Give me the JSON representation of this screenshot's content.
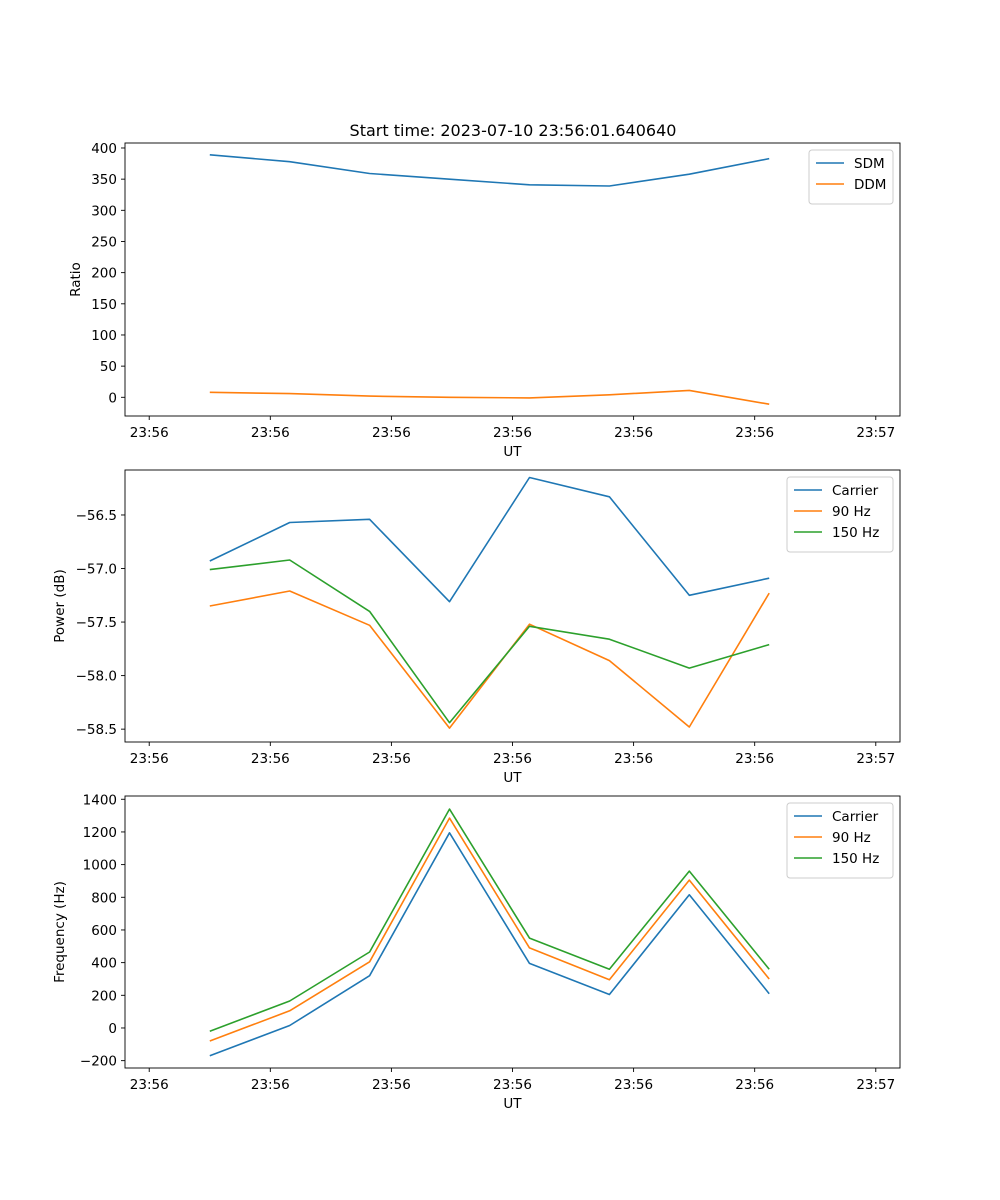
{
  "figure_title": "Start time: 2023-07-10 23:56:01.640640",
  "chart_data": [
    {
      "type": "line",
      "title": "Start time: 2023-07-10 23:56:01.640640",
      "xlabel": "UT",
      "ylabel": "Ratio",
      "x_ticks": [
        "23:56",
        "23:56",
        "23:56",
        "23:56",
        "23:56",
        "23:56",
        "23:57"
      ],
      "y_ticks": [
        "0",
        "50",
        "100",
        "150",
        "200",
        "250",
        "300",
        "350",
        "400"
      ],
      "xlim": [
        -0.7,
        5.7
      ],
      "ylim": [
        -30,
        408
      ],
      "x_tick_values": [
        -0.5,
        0.5,
        1.5,
        2.5,
        3.5,
        4.5,
        5.5
      ],
      "y_tick_values": [
        0,
        50,
        100,
        150,
        200,
        250,
        300,
        350,
        400
      ],
      "x": [
        0,
        0.66,
        1.32,
        1.98,
        2.64,
        3.3,
        3.96,
        4.62
      ],
      "series": [
        {
          "name": "SDM",
          "color": "#1f77b4",
          "values": [
            389,
            378,
            359,
            350,
            341,
            339,
            358,
            383
          ]
        },
        {
          "name": "DDM",
          "color": "#ff7f0e",
          "values": [
            8,
            6,
            2,
            0,
            -1,
            4,
            11,
            -11
          ]
        }
      ],
      "legend": "top-right"
    },
    {
      "type": "line",
      "title": "",
      "xlabel": "UT",
      "ylabel": "Power (dB)",
      "x_ticks": [
        "23:56",
        "23:56",
        "23:56",
        "23:56",
        "23:56",
        "23:56",
        "23:57"
      ],
      "y_ticks": [
        "−56.5",
        "−57.0",
        "−57.5",
        "−58.0",
        "−58.5"
      ],
      "xlim": [
        -0.7,
        5.7
      ],
      "ylim": [
        -58.62,
        -56.08
      ],
      "x_tick_values": [
        -0.5,
        0.5,
        1.5,
        2.5,
        3.5,
        4.5,
        5.5
      ],
      "y_tick_values": [
        -56.5,
        -57.0,
        -57.5,
        -58.0,
        -58.5
      ],
      "x": [
        0,
        0.66,
        1.32,
        1.98,
        2.64,
        3.3,
        3.96,
        4.62
      ],
      "series": [
        {
          "name": "Carrier",
          "color": "#1f77b4",
          "values": [
            -56.93,
            -56.57,
            -56.54,
            -57.31,
            -56.15,
            -56.33,
            -57.25,
            -57.09
          ]
        },
        {
          "name": "90 Hz",
          "color": "#ff7f0e",
          "values": [
            -57.35,
            -57.21,
            -57.53,
            -58.49,
            -57.52,
            -57.86,
            -58.48,
            -57.23
          ]
        },
        {
          "name": "150 Hz",
          "color": "#2ca02c",
          "values": [
            -57.01,
            -56.92,
            -57.4,
            -58.44,
            -57.54,
            -57.66,
            -57.93,
            -57.71
          ]
        }
      ],
      "legend": "top-right"
    },
    {
      "type": "line",
      "title": "",
      "xlabel": "UT",
      "ylabel": "Frequency (Hz)",
      "x_ticks": [
        "23:56",
        "23:56",
        "23:56",
        "23:56",
        "23:56",
        "23:56",
        "23:57"
      ],
      "y_ticks": [
        "−200",
        "0",
        "200",
        "400",
        "600",
        "800",
        "1000",
        "1200",
        "1400"
      ],
      "xlim": [
        -0.7,
        5.7
      ],
      "ylim": [
        -245,
        1420
      ],
      "x_tick_values": [
        -0.5,
        0.5,
        1.5,
        2.5,
        3.5,
        4.5,
        5.5
      ],
      "y_tick_values": [
        -200,
        0,
        200,
        400,
        600,
        800,
        1000,
        1200,
        1400
      ],
      "x": [
        0,
        0.66,
        1.32,
        1.98,
        2.64,
        3.3,
        3.96,
        4.62
      ],
      "series": [
        {
          "name": "Carrier",
          "color": "#1f77b4",
          "values": [
            -170,
            15,
            320,
            1195,
            395,
            205,
            815,
            210
          ]
        },
        {
          "name": "90 Hz",
          "color": "#ff7f0e",
          "values": [
            -80,
            105,
            405,
            1285,
            490,
            295,
            905,
            300
          ]
        },
        {
          "name": "150 Hz",
          "color": "#2ca02c",
          "values": [
            -20,
            165,
            465,
            1340,
            550,
            360,
            960,
            360
          ]
        }
      ],
      "legend": "top-right"
    }
  ]
}
